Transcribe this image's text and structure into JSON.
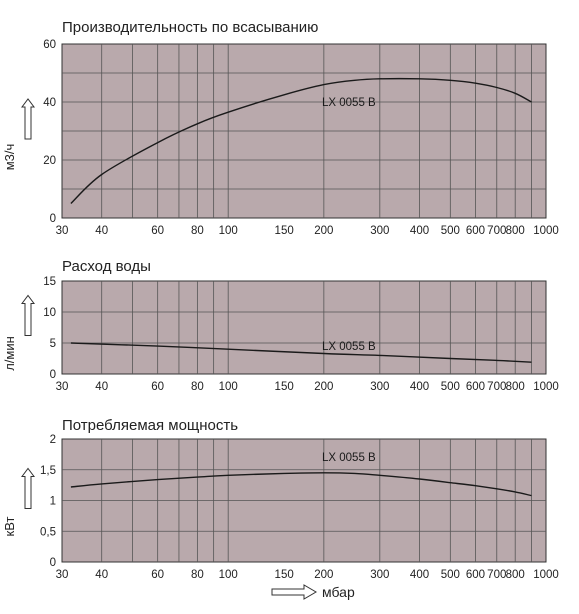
{
  "chart_data": [
    {
      "type": "line",
      "title": "Производительность по всасыванию",
      "ylabel": "м3/ч",
      "xlabel": "",
      "x_scale": "log",
      "xlim": [
        30,
        1000
      ],
      "ylim": [
        0,
        60
      ],
      "x_ticks": [
        30,
        40,
        60,
        80,
        100,
        150,
        200,
        300,
        400,
        500,
        600,
        700,
        800,
        1000
      ],
      "y_ticks": [
        "0",
        "20",
        "40",
        "60"
      ],
      "y_tick_values": [
        0,
        20,
        40,
        60
      ],
      "grid": true,
      "series": [
        {
          "name": "LX 0055 B",
          "x": [
            32,
            40,
            60,
            80,
            100,
            150,
            200,
            250,
            300,
            400,
            500,
            600,
            700,
            800,
            900
          ],
          "y": [
            5,
            15,
            26,
            32.5,
            36.5,
            42.5,
            46,
            47.5,
            48,
            48,
            47.5,
            46.5,
            45,
            43,
            40
          ]
        }
      ]
    },
    {
      "type": "line",
      "title": "Расход воды",
      "ylabel": "л/мин",
      "xlabel": "",
      "x_scale": "log",
      "xlim": [
        30,
        1000
      ],
      "ylim": [
        0,
        15
      ],
      "x_ticks": [
        30,
        40,
        60,
        80,
        100,
        150,
        200,
        300,
        400,
        500,
        600,
        700,
        800,
        1000
      ],
      "y_ticks": [
        "0",
        "5",
        "10",
        "15"
      ],
      "y_tick_values": [
        0,
        5,
        10,
        15
      ],
      "grid": true,
      "series": [
        {
          "name": "LX 0055 B",
          "x": [
            32,
            60,
            100,
            200,
            300,
            500,
            700,
            900
          ],
          "y": [
            5,
            4.5,
            4,
            3.3,
            3,
            2.5,
            2.2,
            1.9
          ]
        }
      ]
    },
    {
      "type": "line",
      "title": "Потребляемая мощность",
      "ylabel": "кВт",
      "xlabel": "мбар",
      "x_scale": "log",
      "xlim": [
        30,
        1000
      ],
      "ylim": [
        0,
        2
      ],
      "x_ticks": [
        30,
        40,
        60,
        80,
        100,
        150,
        200,
        300,
        400,
        500,
        600,
        700,
        800,
        1000
      ],
      "y_ticks": [
        "0",
        "0,5",
        "1",
        "1,5",
        "2"
      ],
      "y_tick_values": [
        0,
        0.5,
        1,
        1.5,
        2
      ],
      "grid": true,
      "series": [
        {
          "name": "LX 0055 B",
          "x": [
            32,
            40,
            60,
            80,
            100,
            150,
            200,
            250,
            300,
            400,
            500,
            600,
            700,
            800,
            900
          ],
          "y": [
            1.22,
            1.27,
            1.34,
            1.38,
            1.41,
            1.44,
            1.45,
            1.44,
            1.41,
            1.35,
            1.29,
            1.24,
            1.19,
            1.14,
            1.08
          ]
        }
      ]
    }
  ]
}
